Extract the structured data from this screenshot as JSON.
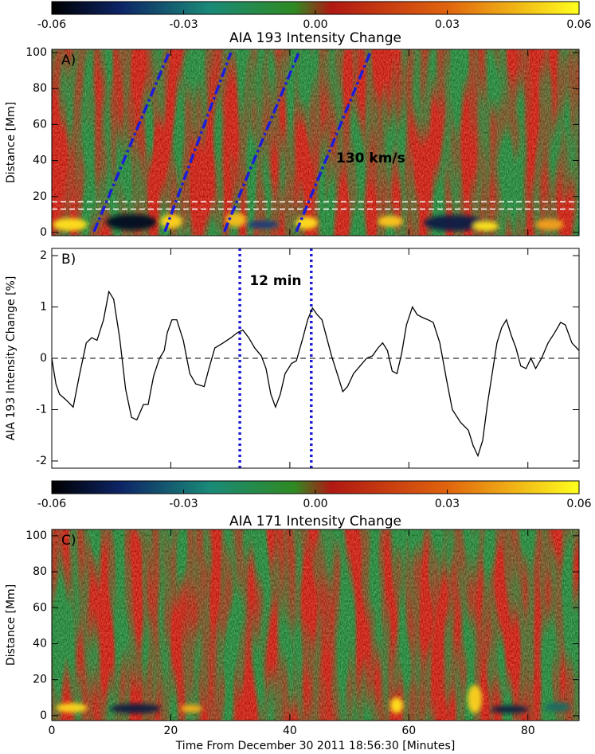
{
  "chart_data": [
    {
      "type": "heatmap",
      "panel_label": "A)",
      "colorbar": {
        "title": "AIA 193 Intensity Change",
        "lim": [
          -0.06,
          0.06
        ],
        "ticks": [
          -0.06,
          -0.03,
          {
            "value": 0,
            "label": "0.00"
          },
          0.03,
          0.06
        ]
      },
      "y_label": "Distance [Mm]",
      "xlim": [
        0,
        88.6
      ],
      "ylim": [
        -1.8,
        101.8
      ],
      "yticks": [
        0,
        20,
        40,
        60,
        80,
        100
      ],
      "hlines": [
        13,
        17
      ],
      "fits": {
        "color": "#1c1cd8",
        "lines": [
          {
            "x": [
              7.1,
              19.7
            ],
            "y": [
              0.5,
              100
            ]
          },
          {
            "x": [
              19.0,
              30.1
            ],
            "y": [
              0.5,
              100
            ]
          },
          {
            "x": [
              29.0,
              41.5
            ],
            "y": [
              0.5,
              100
            ]
          },
          {
            "x": [
              41.1,
              53.5
            ],
            "y": [
              0.5,
              100
            ]
          }
        ]
      },
      "annotation": "130 km/s"
    },
    {
      "type": "line",
      "panel_label": "B)",
      "y_label": "AIA 193 Intensity Change [%]",
      "xlim": [
        0,
        88.6
      ],
      "ylim": [
        -2.14,
        2.14
      ],
      "yticks": [
        -2,
        -1,
        0,
        1,
        2
      ],
      "x": [
        0,
        0.7,
        1.3,
        2.3,
        3.6,
        4.7,
        5.8,
        6.7,
        7.6,
        8.7,
        9.6,
        10.4,
        11.4,
        12.4,
        13.4,
        14.3,
        15.4,
        16.2,
        17.1,
        18.1,
        18.9,
        19.4,
        20.2,
        21.0,
        22.1,
        23.2,
        24.2,
        25.6,
        26.4,
        27.4,
        28.8,
        30.1,
        31.2,
        32.1,
        33.1,
        34.1,
        35.2,
        36.0,
        36.8,
        37.6,
        38.4,
        39.2,
        40.3,
        41.1,
        42.2,
        43.0,
        43.8,
        44.6,
        45.4,
        46.2,
        47.0,
        48.1,
        48.9,
        49.7,
        50.7,
        51.8,
        52.9,
        53.9,
        54.8,
        55.6,
        56.4,
        57.2,
        58.0,
        58.8,
        59.6,
        60.6,
        61.4,
        62.2,
        63.2,
        64.1,
        65.2,
        66.3,
        67.3,
        68.7,
        70.0,
        70.8,
        71.6,
        72.4,
        73.2,
        74.0,
        74.8,
        75.6,
        76.4,
        77.2,
        78.0,
        78.8,
        79.7,
        80.5,
        81.3,
        82.3,
        83.4,
        84.5,
        85.5,
        86.3,
        87.4,
        88.6
      ],
      "series": [
        {
          "color": "#000000",
          "values": [
            0,
            -0.5,
            -0.7,
            -0.8,
            -0.95,
            -0.3,
            0.3,
            0.4,
            0.35,
            0.75,
            1.3,
            1.15,
            0.4,
            -0.6,
            -1.15,
            -1.2,
            -0.9,
            -0.9,
            -0.35,
            0.0,
            0.15,
            0.5,
            0.75,
            0.75,
            0.35,
            -0.3,
            -0.5,
            -0.55,
            -0.2,
            0.2,
            0.3,
            0.4,
            0.5,
            0.55,
            0.4,
            0.2,
            0.05,
            -0.2,
            -0.7,
            -0.95,
            -0.7,
            -0.3,
            -0.1,
            -0.05,
            0.4,
            0.75,
            0.98,
            0.85,
            0.75,
            0.4,
            0.05,
            -0.35,
            -0.65,
            -0.55,
            -0.3,
            -0.15,
            0.0,
            0.05,
            0.2,
            0.3,
            0.15,
            -0.25,
            -0.3,
            0.1,
            0.65,
            1.0,
            0.85,
            0.8,
            0.75,
            0.7,
            0.3,
            -0.4,
            -1.0,
            -1.25,
            -1.4,
            -1.7,
            -1.9,
            -1.6,
            -0.9,
            -0.3,
            0.3,
            0.6,
            0.75,
            0.45,
            0.2,
            -0.15,
            -0.2,
            0.0,
            -0.2,
            0.0,
            0.3,
            0.5,
            0.7,
            0.65,
            0.3,
            0.15
          ]
        }
      ],
      "vlines": [
        31.6,
        43.6
      ],
      "vline_color": "#1c1cd8",
      "annotation": "12 min"
    },
    {
      "type": "heatmap",
      "panel_label": "C)",
      "colorbar": {
        "title": "AIA 171 Intensity Change",
        "lim": [
          -0.06,
          0.06
        ],
        "ticks": [
          -0.06,
          -0.03,
          {
            "value": 0,
            "label": "0.00"
          },
          0.03,
          0.06
        ]
      },
      "y_label": "Distance [Mm]",
      "x_label": "Time From December 30 2011 18:56:30 [Minutes]",
      "xlim": [
        0,
        88.6
      ],
      "ylim": [
        -2.7,
        103.5
      ],
      "yticks": [
        0,
        20,
        40,
        60,
        80,
        100
      ],
      "xticks": [
        0,
        20,
        40,
        60,
        80
      ]
    }
  ]
}
